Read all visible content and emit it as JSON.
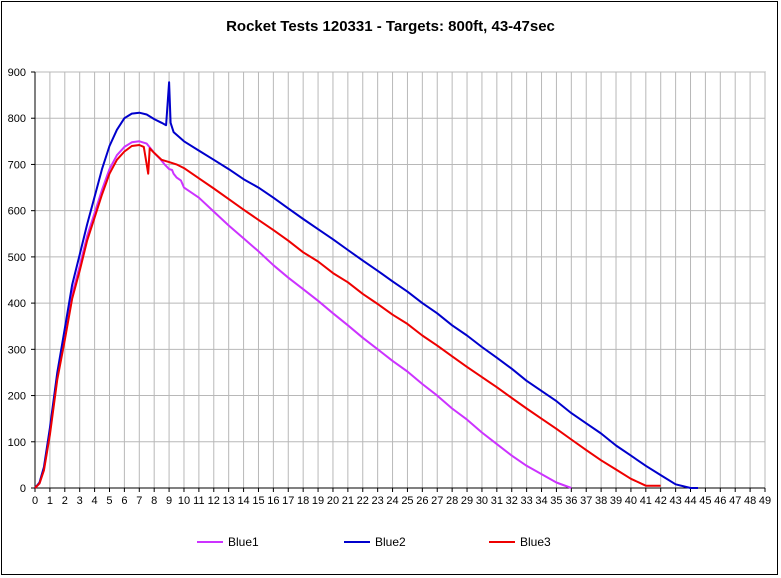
{
  "chart_data": {
    "type": "line",
    "title": "Rocket Tests 120331 - Targets: 800ft, 43-47sec",
    "xlabel": "",
    "ylabel": "",
    "xlim": [
      0,
      49
    ],
    "ylim": [
      0,
      900
    ],
    "x_ticks": [
      0,
      1,
      2,
      3,
      4,
      5,
      6,
      7,
      8,
      9,
      10,
      11,
      12,
      13,
      14,
      15,
      16,
      17,
      18,
      19,
      20,
      21,
      22,
      23,
      24,
      25,
      26,
      27,
      28,
      29,
      30,
      31,
      32,
      33,
      34,
      35,
      36,
      37,
      38,
      39,
      40,
      41,
      42,
      43,
      44,
      45,
      46,
      47,
      48,
      49
    ],
    "y_ticks": [
      0,
      100,
      200,
      300,
      400,
      500,
      600,
      700,
      800,
      900
    ],
    "grid": true,
    "legend_position": "bottom",
    "series": [
      {
        "name": "Blue1",
        "color": "#CC33FF",
        "points": [
          [
            0,
            0
          ],
          [
            0.3,
            10
          ],
          [
            0.6,
            40
          ],
          [
            1,
            120
          ],
          [
            1.5,
            240
          ],
          [
            2,
            330
          ],
          [
            2.5,
            420
          ],
          [
            3,
            480
          ],
          [
            3.5,
            545
          ],
          [
            4,
            595
          ],
          [
            4.5,
            645
          ],
          [
            5,
            690
          ],
          [
            5.5,
            720
          ],
          [
            6,
            738
          ],
          [
            6.5,
            748
          ],
          [
            7,
            750
          ],
          [
            7.5,
            745
          ],
          [
            8,
            725
          ],
          [
            8.4,
            712
          ],
          [
            8.7,
            700
          ],
          [
            9,
            690
          ],
          [
            9.2,
            688
          ],
          [
            9.3,
            680
          ],
          [
            9.5,
            672
          ],
          [
            9.8,
            665
          ],
          [
            10,
            650
          ],
          [
            11,
            628
          ],
          [
            12,
            598
          ],
          [
            13,
            568
          ],
          [
            14,
            540
          ],
          [
            15,
            512
          ],
          [
            16,
            482
          ],
          [
            17,
            455
          ],
          [
            18,
            430
          ],
          [
            19,
            405
          ],
          [
            20,
            378
          ],
          [
            21,
            352
          ],
          [
            22,
            325
          ],
          [
            23,
            300
          ],
          [
            24,
            275
          ],
          [
            25,
            252
          ],
          [
            26,
            225
          ],
          [
            27,
            200
          ],
          [
            28,
            172
          ],
          [
            29,
            148
          ],
          [
            30,
            120
          ],
          [
            31,
            95
          ],
          [
            32,
            70
          ],
          [
            33,
            48
          ],
          [
            34,
            30
          ],
          [
            35,
            12
          ],
          [
            36,
            0
          ]
        ]
      },
      {
        "name": "Blue2",
        "color": "#0000CC",
        "points": [
          [
            0,
            0
          ],
          [
            0.3,
            12
          ],
          [
            0.6,
            45
          ],
          [
            1,
            130
          ],
          [
            1.5,
            250
          ],
          [
            2,
            345
          ],
          [
            2.5,
            440
          ],
          [
            3,
            505
          ],
          [
            3.5,
            570
          ],
          [
            4,
            630
          ],
          [
            4.5,
            690
          ],
          [
            5,
            740
          ],
          [
            5.5,
            775
          ],
          [
            6,
            800
          ],
          [
            6.5,
            810
          ],
          [
            7,
            812
          ],
          [
            7.5,
            808
          ],
          [
            8,
            798
          ],
          [
            8.5,
            790
          ],
          [
            8.8,
            785
          ],
          [
            9,
            878
          ],
          [
            9.1,
            790
          ],
          [
            9.3,
            770
          ],
          [
            10,
            750
          ],
          [
            11,
            730
          ],
          [
            12,
            710
          ],
          [
            13,
            690
          ],
          [
            14,
            668
          ],
          [
            15,
            650
          ],
          [
            16,
            628
          ],
          [
            17,
            605
          ],
          [
            18,
            582
          ],
          [
            19,
            560
          ],
          [
            20,
            538
          ],
          [
            21,
            515
          ],
          [
            22,
            492
          ],
          [
            23,
            470
          ],
          [
            24,
            447
          ],
          [
            25,
            425
          ],
          [
            26,
            400
          ],
          [
            27,
            378
          ],
          [
            28,
            352
          ],
          [
            29,
            330
          ],
          [
            30,
            305
          ],
          [
            31,
            282
          ],
          [
            32,
            258
          ],
          [
            33,
            232
          ],
          [
            34,
            210
          ],
          [
            35,
            188
          ],
          [
            36,
            162
          ],
          [
            37,
            140
          ],
          [
            38,
            118
          ],
          [
            39,
            92
          ],
          [
            40,
            70
          ],
          [
            41,
            48
          ],
          [
            42,
            28
          ],
          [
            43,
            8
          ],
          [
            44,
            0
          ],
          [
            44.5,
            0
          ]
        ]
      },
      {
        "name": "Blue3",
        "color": "#EE0000",
        "points": [
          [
            0,
            0
          ],
          [
            0.3,
            10
          ],
          [
            0.6,
            38
          ],
          [
            1,
            115
          ],
          [
            1.5,
            235
          ],
          [
            2,
            320
          ],
          [
            2.5,
            410
          ],
          [
            3,
            470
          ],
          [
            3.5,
            535
          ],
          [
            4,
            585
          ],
          [
            4.5,
            635
          ],
          [
            5,
            680
          ],
          [
            5.5,
            710
          ],
          [
            6,
            728
          ],
          [
            6.5,
            740
          ],
          [
            7,
            742
          ],
          [
            7.3,
            738
          ],
          [
            7.5,
            700
          ],
          [
            7.6,
            680
          ],
          [
            7.7,
            735
          ],
          [
            8,
            725
          ],
          [
            8.5,
            710
          ],
          [
            9,
            705
          ],
          [
            9.5,
            700
          ],
          [
            10,
            692
          ],
          [
            11,
            670
          ],
          [
            12,
            648
          ],
          [
            13,
            625
          ],
          [
            14,
            602
          ],
          [
            15,
            580
          ],
          [
            16,
            558
          ],
          [
            17,
            535
          ],
          [
            18,
            510
          ],
          [
            19,
            490
          ],
          [
            20,
            465
          ],
          [
            21,
            445
          ],
          [
            22,
            420
          ],
          [
            23,
            398
          ],
          [
            24,
            375
          ],
          [
            25,
            355
          ],
          [
            26,
            330
          ],
          [
            27,
            308
          ],
          [
            28,
            285
          ],
          [
            29,
            262
          ],
          [
            30,
            240
          ],
          [
            31,
            218
          ],
          [
            32,
            195
          ],
          [
            33,
            172
          ],
          [
            34,
            150
          ],
          [
            35,
            128
          ],
          [
            36,
            105
          ],
          [
            37,
            82
          ],
          [
            38,
            60
          ],
          [
            39,
            40
          ],
          [
            40,
            20
          ],
          [
            41,
            5
          ],
          [
            42,
            5
          ]
        ]
      }
    ]
  }
}
